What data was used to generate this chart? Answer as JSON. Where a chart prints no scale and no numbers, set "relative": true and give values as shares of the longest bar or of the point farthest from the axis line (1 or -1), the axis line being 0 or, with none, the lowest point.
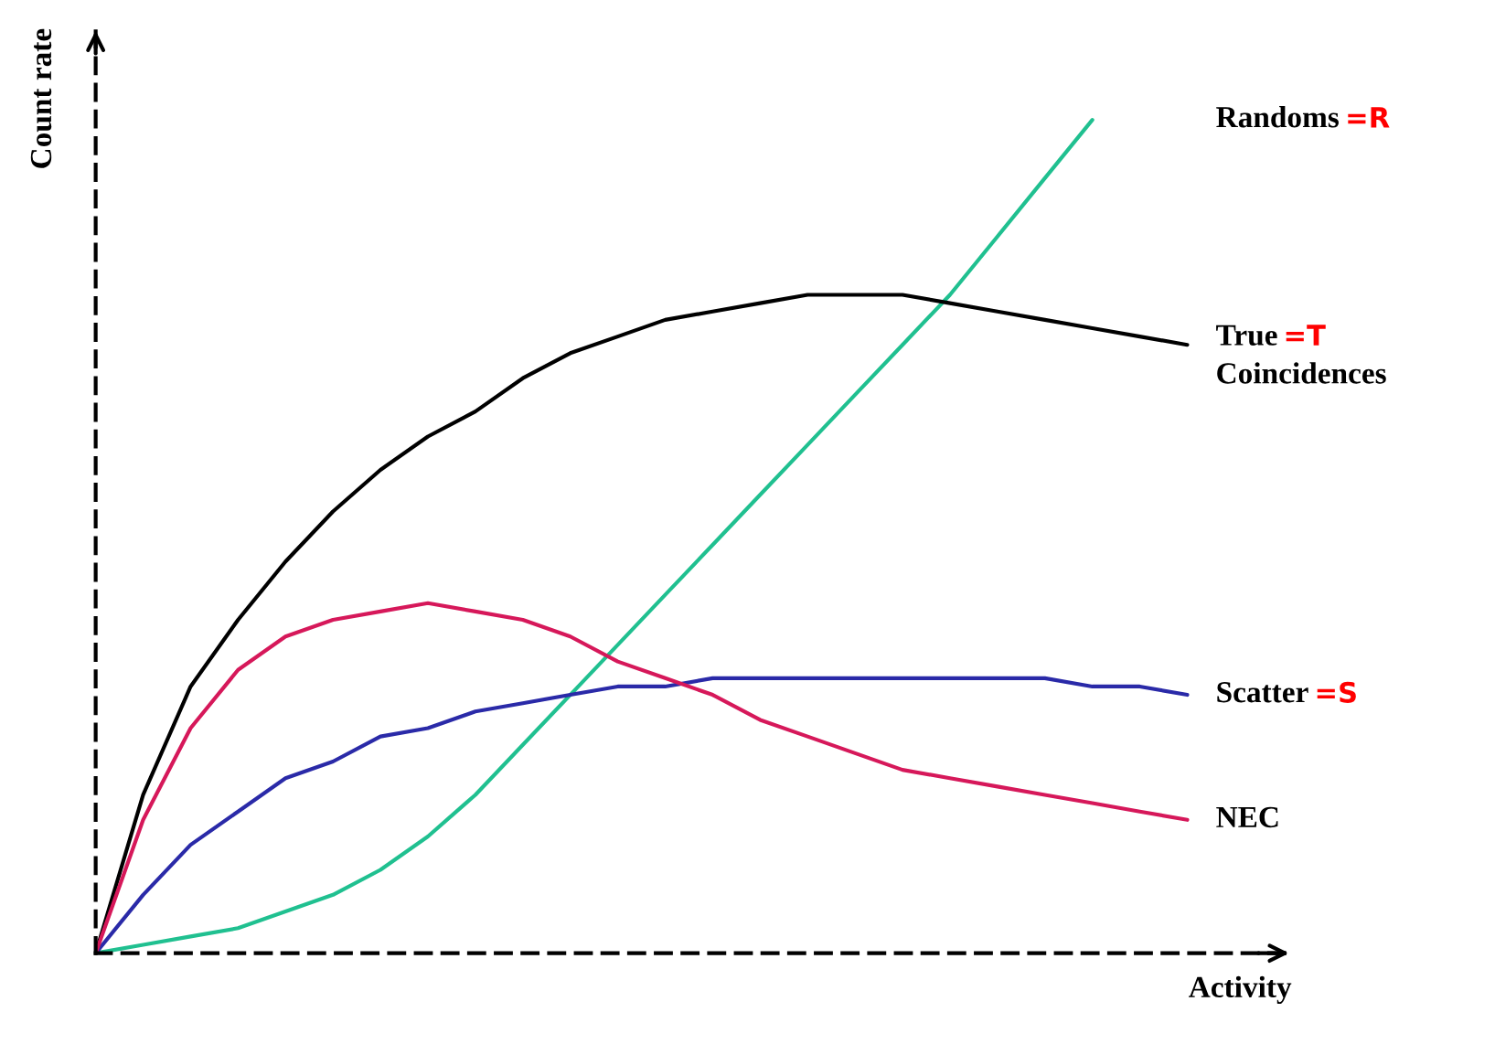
{
  "chart_data": {
    "type": "line",
    "relative": true,
    "xlabel": "Activity",
    "ylabel": "Count rate",
    "categories": [
      null,
      null,
      null,
      null,
      null,
      null,
      null,
      null,
      null,
      null,
      null,
      null,
      null,
      null,
      null,
      null,
      null,
      null,
      null,
      null,
      null,
      null,
      null,
      null
    ],
    "series": [
      {
        "name": "Randoms",
        "color": "#20c090",
        "values": [
          0,
          0.01,
          0.02,
          0.03,
          0.05,
          0.07,
          0.1,
          0.14,
          0.19,
          0.25,
          0.31,
          0.37,
          0.43,
          0.49,
          0.55,
          0.61,
          0.67,
          0.73,
          0.79,
          0.86,
          0.93,
          1.0,
          null,
          null
        ]
      },
      {
        "name": "True\nCoincidences",
        "color": "#000000",
        "values": [
          0,
          0.19,
          0.32,
          0.4,
          0.47,
          0.53,
          0.58,
          0.62,
          0.65,
          0.69,
          0.72,
          0.74,
          0.76,
          0.77,
          0.78,
          0.79,
          0.79,
          0.79,
          0.78,
          0.77,
          0.76,
          0.75,
          0.74,
          0.73
        ]
      },
      {
        "name": "Scatter",
        "color": "#2a2aa8",
        "values": [
          0,
          0.07,
          0.13,
          0.17,
          0.21,
          0.23,
          0.26,
          0.27,
          0.29,
          0.3,
          0.31,
          0.32,
          0.32,
          0.33,
          0.33,
          0.33,
          0.33,
          0.33,
          0.33,
          0.33,
          0.33,
          0.32,
          0.32,
          0.31
        ]
      },
      {
        "name": "NEC",
        "color": "#d6185a",
        "values": [
          0,
          0.16,
          0.27,
          0.34,
          0.38,
          0.4,
          0.41,
          0.42,
          0.41,
          0.4,
          0.38,
          0.35,
          0.33,
          0.31,
          0.28,
          0.26,
          0.24,
          0.22,
          0.21,
          0.2,
          0.19,
          0.18,
          0.17,
          0.16
        ]
      }
    ],
    "annotations": [
      "=R",
      "=T",
      "=S"
    ],
    "legend": false,
    "grid": false,
    "marker": "none",
    "line_style": "solid",
    "tick_labels": false
  }
}
